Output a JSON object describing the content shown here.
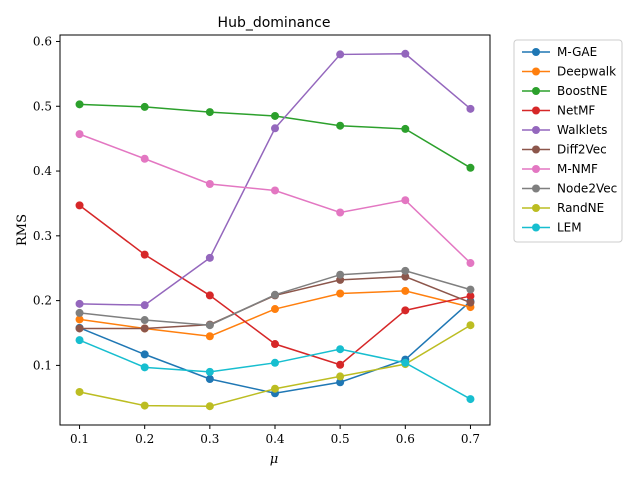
{
  "chart_data": {
    "type": "line",
    "title": "Hub_dominance",
    "xlabel": "μ",
    "ylabel": "RMS",
    "x": [
      0.1,
      0.2,
      0.3,
      0.4,
      0.5,
      0.6,
      0.7
    ],
    "x_tick_labels": [
      "0.1",
      "0.2",
      "0.3",
      "0.4",
      "0.5",
      "0.6",
      "0.7"
    ],
    "y_ticks": [
      0.1,
      0.2,
      0.3,
      0.4,
      0.5,
      0.6
    ],
    "y_tick_labels": [
      "0.1",
      "0.2",
      "0.3",
      "0.4",
      "0.5",
      "0.6"
    ],
    "xlim": [
      0.07,
      0.73
    ],
    "ylim": [
      0.008,
      0.61
    ],
    "grid": false,
    "legend_position": "right",
    "series": [
      {
        "name": "M-GAE",
        "color": "#1f77b4",
        "values": [
          0.158,
          0.117,
          0.079,
          0.057,
          0.074,
          0.109,
          0.199
        ]
      },
      {
        "name": "Deepwalk",
        "color": "#ff7f0e",
        "values": [
          0.171,
          0.157,
          0.145,
          0.187,
          0.211,
          0.215,
          0.19
        ]
      },
      {
        "name": "BoostNE",
        "color": "#2ca02c",
        "values": [
          0.503,
          0.499,
          0.491,
          0.485,
          0.47,
          0.465,
          0.405
        ]
      },
      {
        "name": "NetMF",
        "color": "#d62728",
        "values": [
          0.347,
          0.271,
          0.208,
          0.133,
          0.101,
          0.185,
          0.207
        ]
      },
      {
        "name": "Walklets",
        "color": "#9467bd",
        "values": [
          0.195,
          0.193,
          0.266,
          0.466,
          0.58,
          0.581,
          0.496
        ]
      },
      {
        "name": "Diff2Vec",
        "color": "#8c564b",
        "values": [
          0.157,
          0.157,
          0.163,
          0.208,
          0.232,
          0.237,
          0.197
        ]
      },
      {
        "name": "M-NMF",
        "color": "#e377c2",
        "values": [
          0.457,
          0.419,
          0.38,
          0.37,
          0.336,
          0.355,
          0.258
        ]
      },
      {
        "name": "Node2Vec",
        "color": "#7f7f7f",
        "values": [
          0.181,
          0.17,
          0.162,
          0.209,
          0.24,
          0.246,
          0.217
        ]
      },
      {
        "name": "RandNE",
        "color": "#bcbd22",
        "values": [
          0.059,
          0.038,
          0.037,
          0.064,
          0.083,
          0.102,
          0.162
        ]
      },
      {
        "name": "LEM",
        "color": "#17becf",
        "values": [
          0.139,
          0.097,
          0.09,
          0.104,
          0.125,
          0.104,
          0.048
        ]
      }
    ]
  }
}
